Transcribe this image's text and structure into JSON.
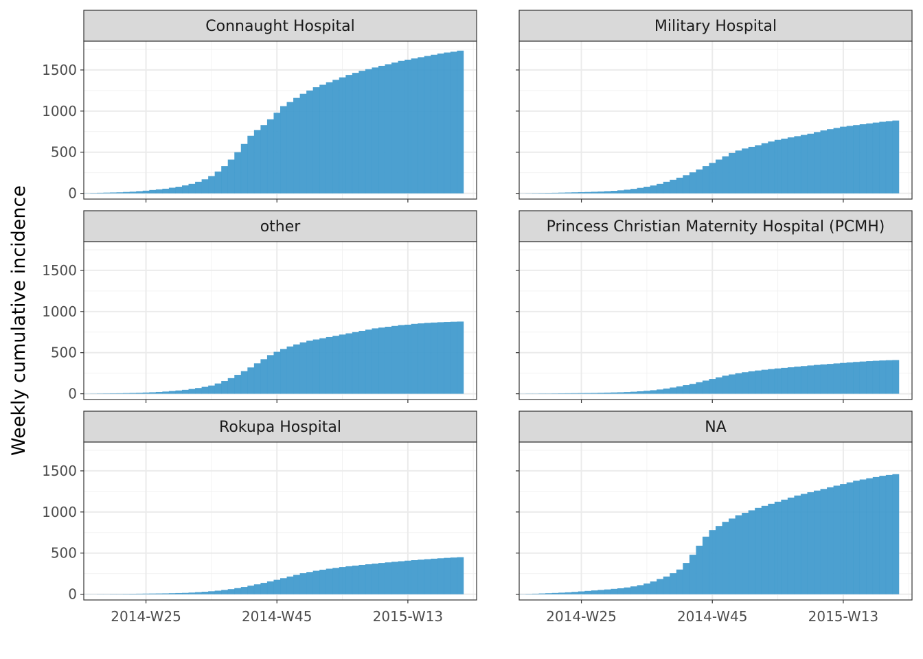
{
  "chart_data": {
    "type": "bar",
    "layout": "facet grid, 3 rows x 2 columns",
    "ylabel": "Weekly cumulative incidence",
    "xlabel": "",
    "x_tick_labels": [
      "2014-W25",
      "2014-W45",
      "2015-W13"
    ],
    "x_tick_weeks": [
      "2014-W25",
      "2014-W45",
      "2015-W13"
    ],
    "y_tick_labels": [
      "0",
      "500",
      "1000",
      "1500"
    ],
    "y_ticks": [
      0,
      500,
      1000,
      1500
    ],
    "ylim": [
      -70,
      1850
    ],
    "first_week": "2014-W16",
    "bar_color": "#3d98cc",
    "grid": true,
    "facets": [
      {
        "title": "Connaught Hospital",
        "values": [
          2,
          4,
          6,
          8,
          10,
          12,
          16,
          20,
          26,
          32,
          40,
          48,
          56,
          68,
          80,
          96,
          115,
          140,
          170,
          210,
          265,
          330,
          410,
          500,
          600,
          700,
          770,
          830,
          900,
          980,
          1060,
          1110,
          1160,
          1210,
          1250,
          1290,
          1320,
          1350,
          1380,
          1410,
          1440,
          1465,
          1490,
          1510,
          1530,
          1550,
          1570,
          1590,
          1610,
          1625,
          1640,
          1655,
          1670,
          1685,
          1700,
          1712,
          1722,
          1735
        ]
      },
      {
        "title": "Military Hospital",
        "values": [
          1,
          2,
          3,
          4,
          5,
          6,
          8,
          10,
          12,
          14,
          16,
          19,
          22,
          26,
          30,
          36,
          44,
          54,
          66,
          80,
          95,
          115,
          140,
          165,
          190,
          220,
          255,
          290,
          330,
          370,
          410,
          450,
          490,
          520,
          545,
          565,
          585,
          610,
          630,
          650,
          665,
          680,
          695,
          710,
          725,
          745,
          765,
          780,
          795,
          810,
          820,
          830,
          840,
          850,
          860,
          870,
          878,
          885
        ]
      },
      {
        "title": "other",
        "values": [
          1,
          2,
          3,
          4,
          5,
          6,
          8,
          10,
          12,
          15,
          18,
          22,
          27,
          33,
          40,
          48,
          58,
          70,
          84,
          100,
          125,
          155,
          190,
          230,
          275,
          320,
          370,
          420,
          470,
          510,
          545,
          575,
          600,
          625,
          645,
          660,
          675,
          690,
          705,
          720,
          735,
          750,
          765,
          780,
          795,
          805,
          815,
          825,
          835,
          840,
          850,
          856,
          862,
          866,
          870,
          873,
          876,
          878
        ]
      },
      {
        "title": "Princess Christian Maternity Hospital (PCMH)",
        "values": [
          1,
          2,
          2,
          3,
          3,
          4,
          5,
          6,
          7,
          8,
          9,
          10,
          12,
          14,
          16,
          18,
          21,
          25,
          30,
          36,
          43,
          52,
          63,
          76,
          90,
          105,
          120,
          140,
          160,
          180,
          200,
          220,
          235,
          250,
          262,
          273,
          283,
          292,
          300,
          308,
          315,
          322,
          330,
          337,
          344,
          351,
          357,
          363,
          369,
          375,
          381,
          387,
          392,
          397,
          401,
          405,
          408,
          410
        ]
      },
      {
        "title": "Rokupa Hospital",
        "values": [
          1,
          1,
          2,
          2,
          3,
          3,
          4,
          5,
          6,
          7,
          8,
          9,
          10,
          12,
          14,
          16,
          20,
          25,
          30,
          36,
          43,
          52,
          62,
          74,
          88,
          104,
          120,
          138,
          156,
          175,
          195,
          215,
          235,
          255,
          270,
          285,
          298,
          310,
          320,
          330,
          340,
          348,
          356,
          364,
          372,
          380,
          387,
          394,
          401,
          408,
          414,
          420,
          426,
          432,
          437,
          442,
          446,
          450
        ]
      },
      {
        "title": "NA",
        "values": [
          2,
          4,
          6,
          9,
          12,
          15,
          19,
          23,
          28,
          34,
          40,
          46,
          52,
          58,
          65,
          72,
          82,
          95,
          110,
          130,
          155,
          185,
          215,
          255,
          300,
          380,
          480,
          590,
          700,
          780,
          830,
          880,
          920,
          960,
          990,
          1020,
          1050,
          1075,
          1100,
          1125,
          1150,
          1175,
          1200,
          1220,
          1240,
          1260,
          1280,
          1300,
          1320,
          1340,
          1360,
          1380,
          1395,
          1410,
          1425,
          1440,
          1450,
          1460
        ]
      }
    ]
  }
}
